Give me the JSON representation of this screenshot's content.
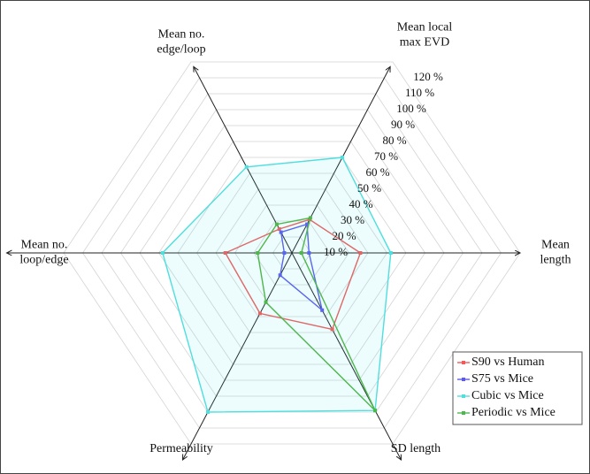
{
  "chart_data": {
    "type": "radar",
    "categories": [
      [
        "Mean",
        "length"
      ],
      [
        "Mean local",
        "max EVD"
      ],
      [
        "Mean no.",
        "edge/loop"
      ],
      [
        "Mean no.",
        "loop/edge"
      ],
      [
        "Permeability"
      ],
      [
        "SD length"
      ]
    ],
    "series": [
      {
        "name": "S90 vs Human",
        "color": "#f05a5a",
        "values": [
          36,
          21,
          15,
          35,
          38,
          48
        ]
      },
      {
        "name": "S75 vs Mice",
        "color": "#5a5af0",
        "values": [
          9,
          18,
          13,
          4,
          14,
          36
        ]
      },
      {
        "name": "Cubic vs Mice",
        "color": "#50dede",
        "values": [
          52,
          60,
          54,
          68,
          100,
          99
        ]
      },
      {
        "name": "Periodic vs Mice",
        "color": "#4cb84c",
        "values": [
          5,
          22,
          18,
          18,
          31,
          99
        ]
      }
    ],
    "rlim": [
      0,
      120
    ],
    "rticks": [
      {
        "value": 10,
        "label": "10 %"
      },
      {
        "value": 20,
        "label": "20 %"
      },
      {
        "value": 30,
        "label": "30 %"
      },
      {
        "value": 40,
        "label": "40 %"
      },
      {
        "value": 50,
        "label": "50 %"
      },
      {
        "value": 60,
        "label": "60 %"
      },
      {
        "value": 70,
        "label": "70 %"
      },
      {
        "value": 80,
        "label": "80 %"
      },
      {
        "value": 90,
        "label": "90 %"
      },
      {
        "value": 100,
        "label": "100 %"
      },
      {
        "value": 110,
        "label": "110 %"
      },
      {
        "value": 120,
        "label": "120 %"
      }
    ],
    "grid": true,
    "legend": "lower right"
  }
}
